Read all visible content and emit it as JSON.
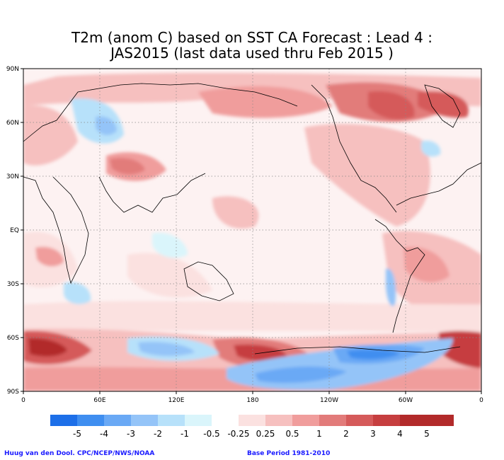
{
  "title": {
    "line1": "T2m (anom C) based on SST CA Forecast : Lead 4 :",
    "line2": "JAS2015 (last data used thru Feb 2015 )"
  },
  "lat_ticks": [
    "90N",
    "60N",
    "30N",
    "EQ",
    "30S",
    "60S",
    "90S"
  ],
  "lon_ticks": [
    "0",
    "60E",
    "120E",
    "180",
    "120W",
    "60W",
    "0"
  ],
  "colorbar": {
    "colors": [
      "#1d6fe8",
      "#3f8ef0",
      "#6aa9f5",
      "#94c4f8",
      "#b7e1fa",
      "#daf5fb",
      "#ffffff",
      "#fbe1e0",
      "#f6c0bf",
      "#f09d9c",
      "#e27b7a",
      "#d55a5a",
      "#c63e3f",
      "#b22a2a"
    ],
    "labels": [
      "-5",
      "-4",
      "-3",
      "-2",
      "-1",
      "-0.5",
      "-0.25",
      "0.25",
      "0.5",
      "1",
      "2",
      "3",
      "4",
      "5"
    ]
  },
  "footer": {
    "credit": "Huug van den Dool. CPC/NCEP/NWS/NOAA",
    "base_period": "Base Period 1981-2010"
  }
}
